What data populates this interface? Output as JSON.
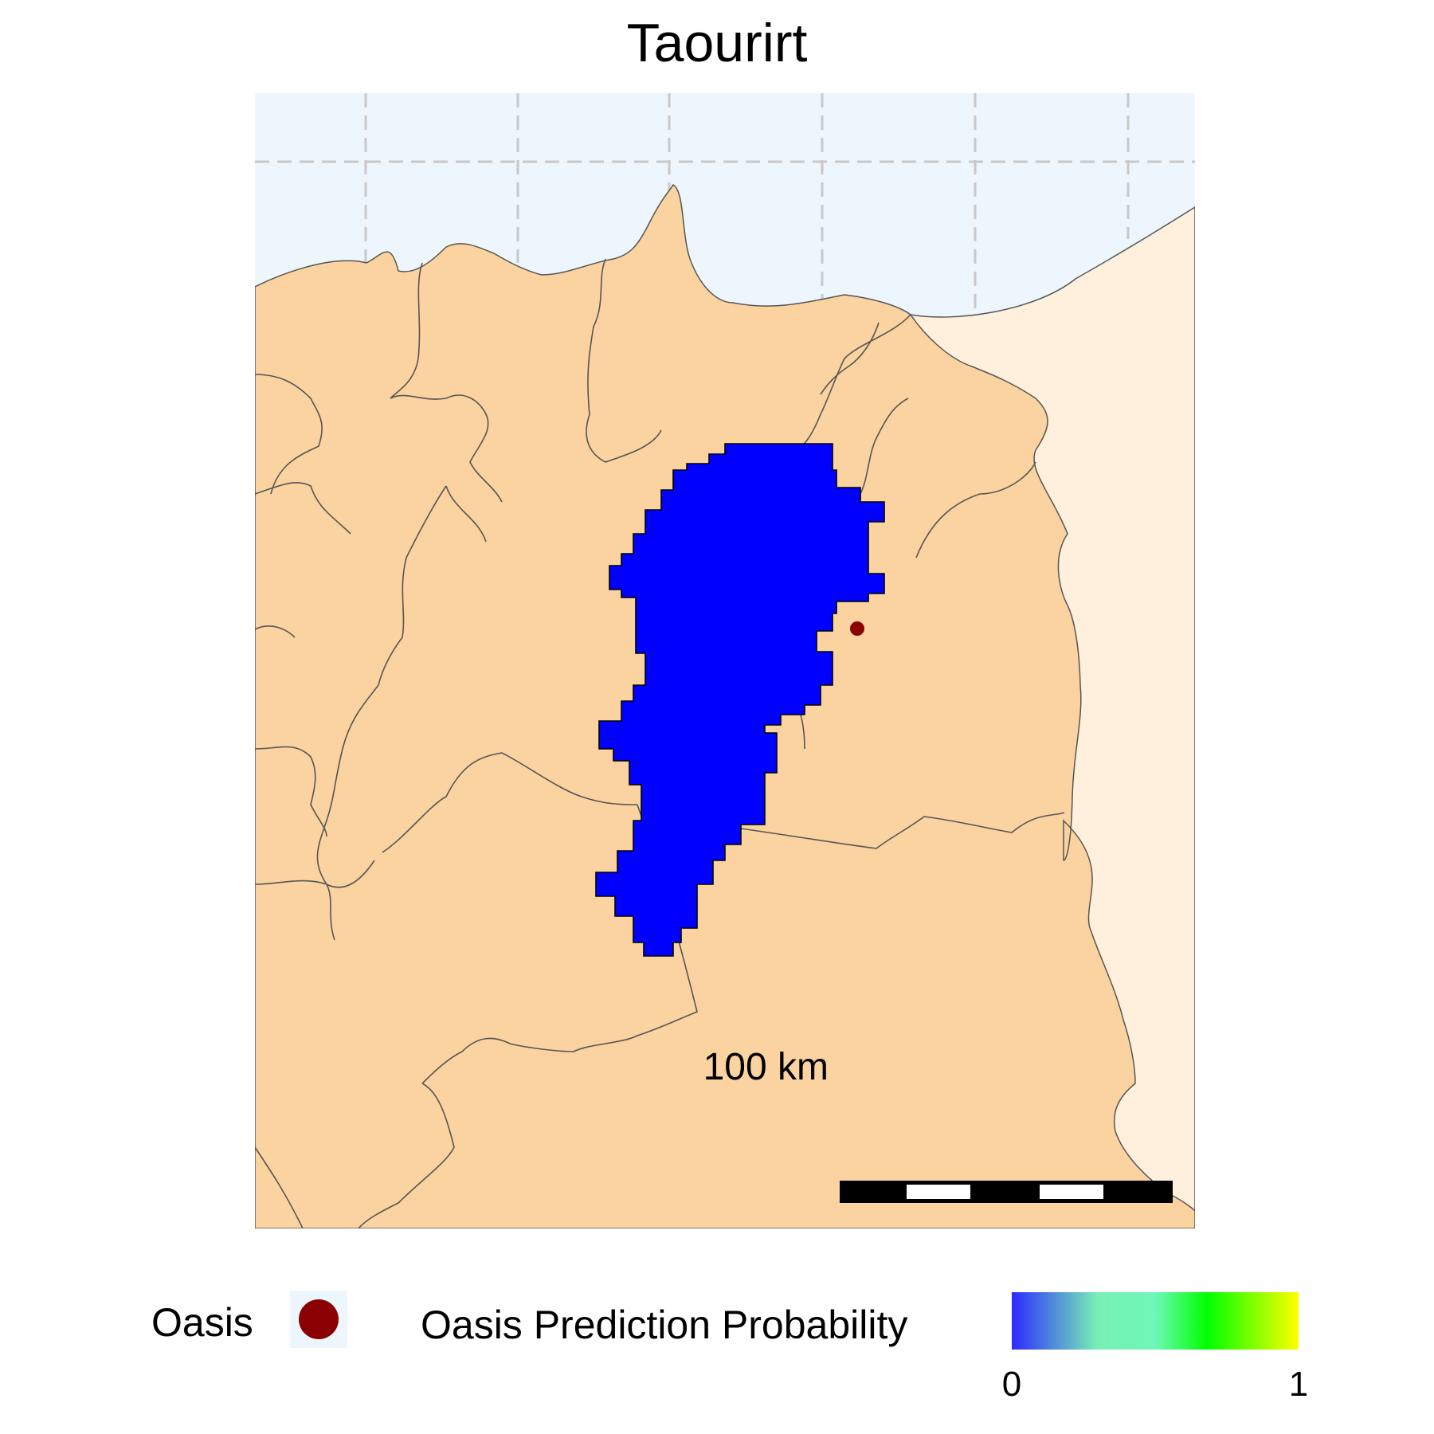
{
  "title": "Taourirt",
  "colors": {
    "sea": "#eef6fd",
    "study_area_land": "#fbd3a0",
    "other_land": "#fef0dc",
    "prediction_fill": "#0000ff",
    "boundary": "#555555",
    "oasis_point": "#8b0000",
    "graticule": "#c8c8c8"
  },
  "scale_bar": {
    "label": "100 km"
  },
  "legend": {
    "oasis_label": "Oasis",
    "probability_label": "Oasis Prediction Probability",
    "probability_min": "0",
    "probability_max": "1",
    "gradient_colors": [
      "#2b2bff",
      "#78f0b4",
      "#6ef7b8",
      "#00ff00",
      "#ffff00"
    ]
  },
  "map_layers": [
    "sea",
    "neighbouring country land",
    "province boundaries",
    "predicted oasis area (probability 0)",
    "oasis location point"
  ]
}
